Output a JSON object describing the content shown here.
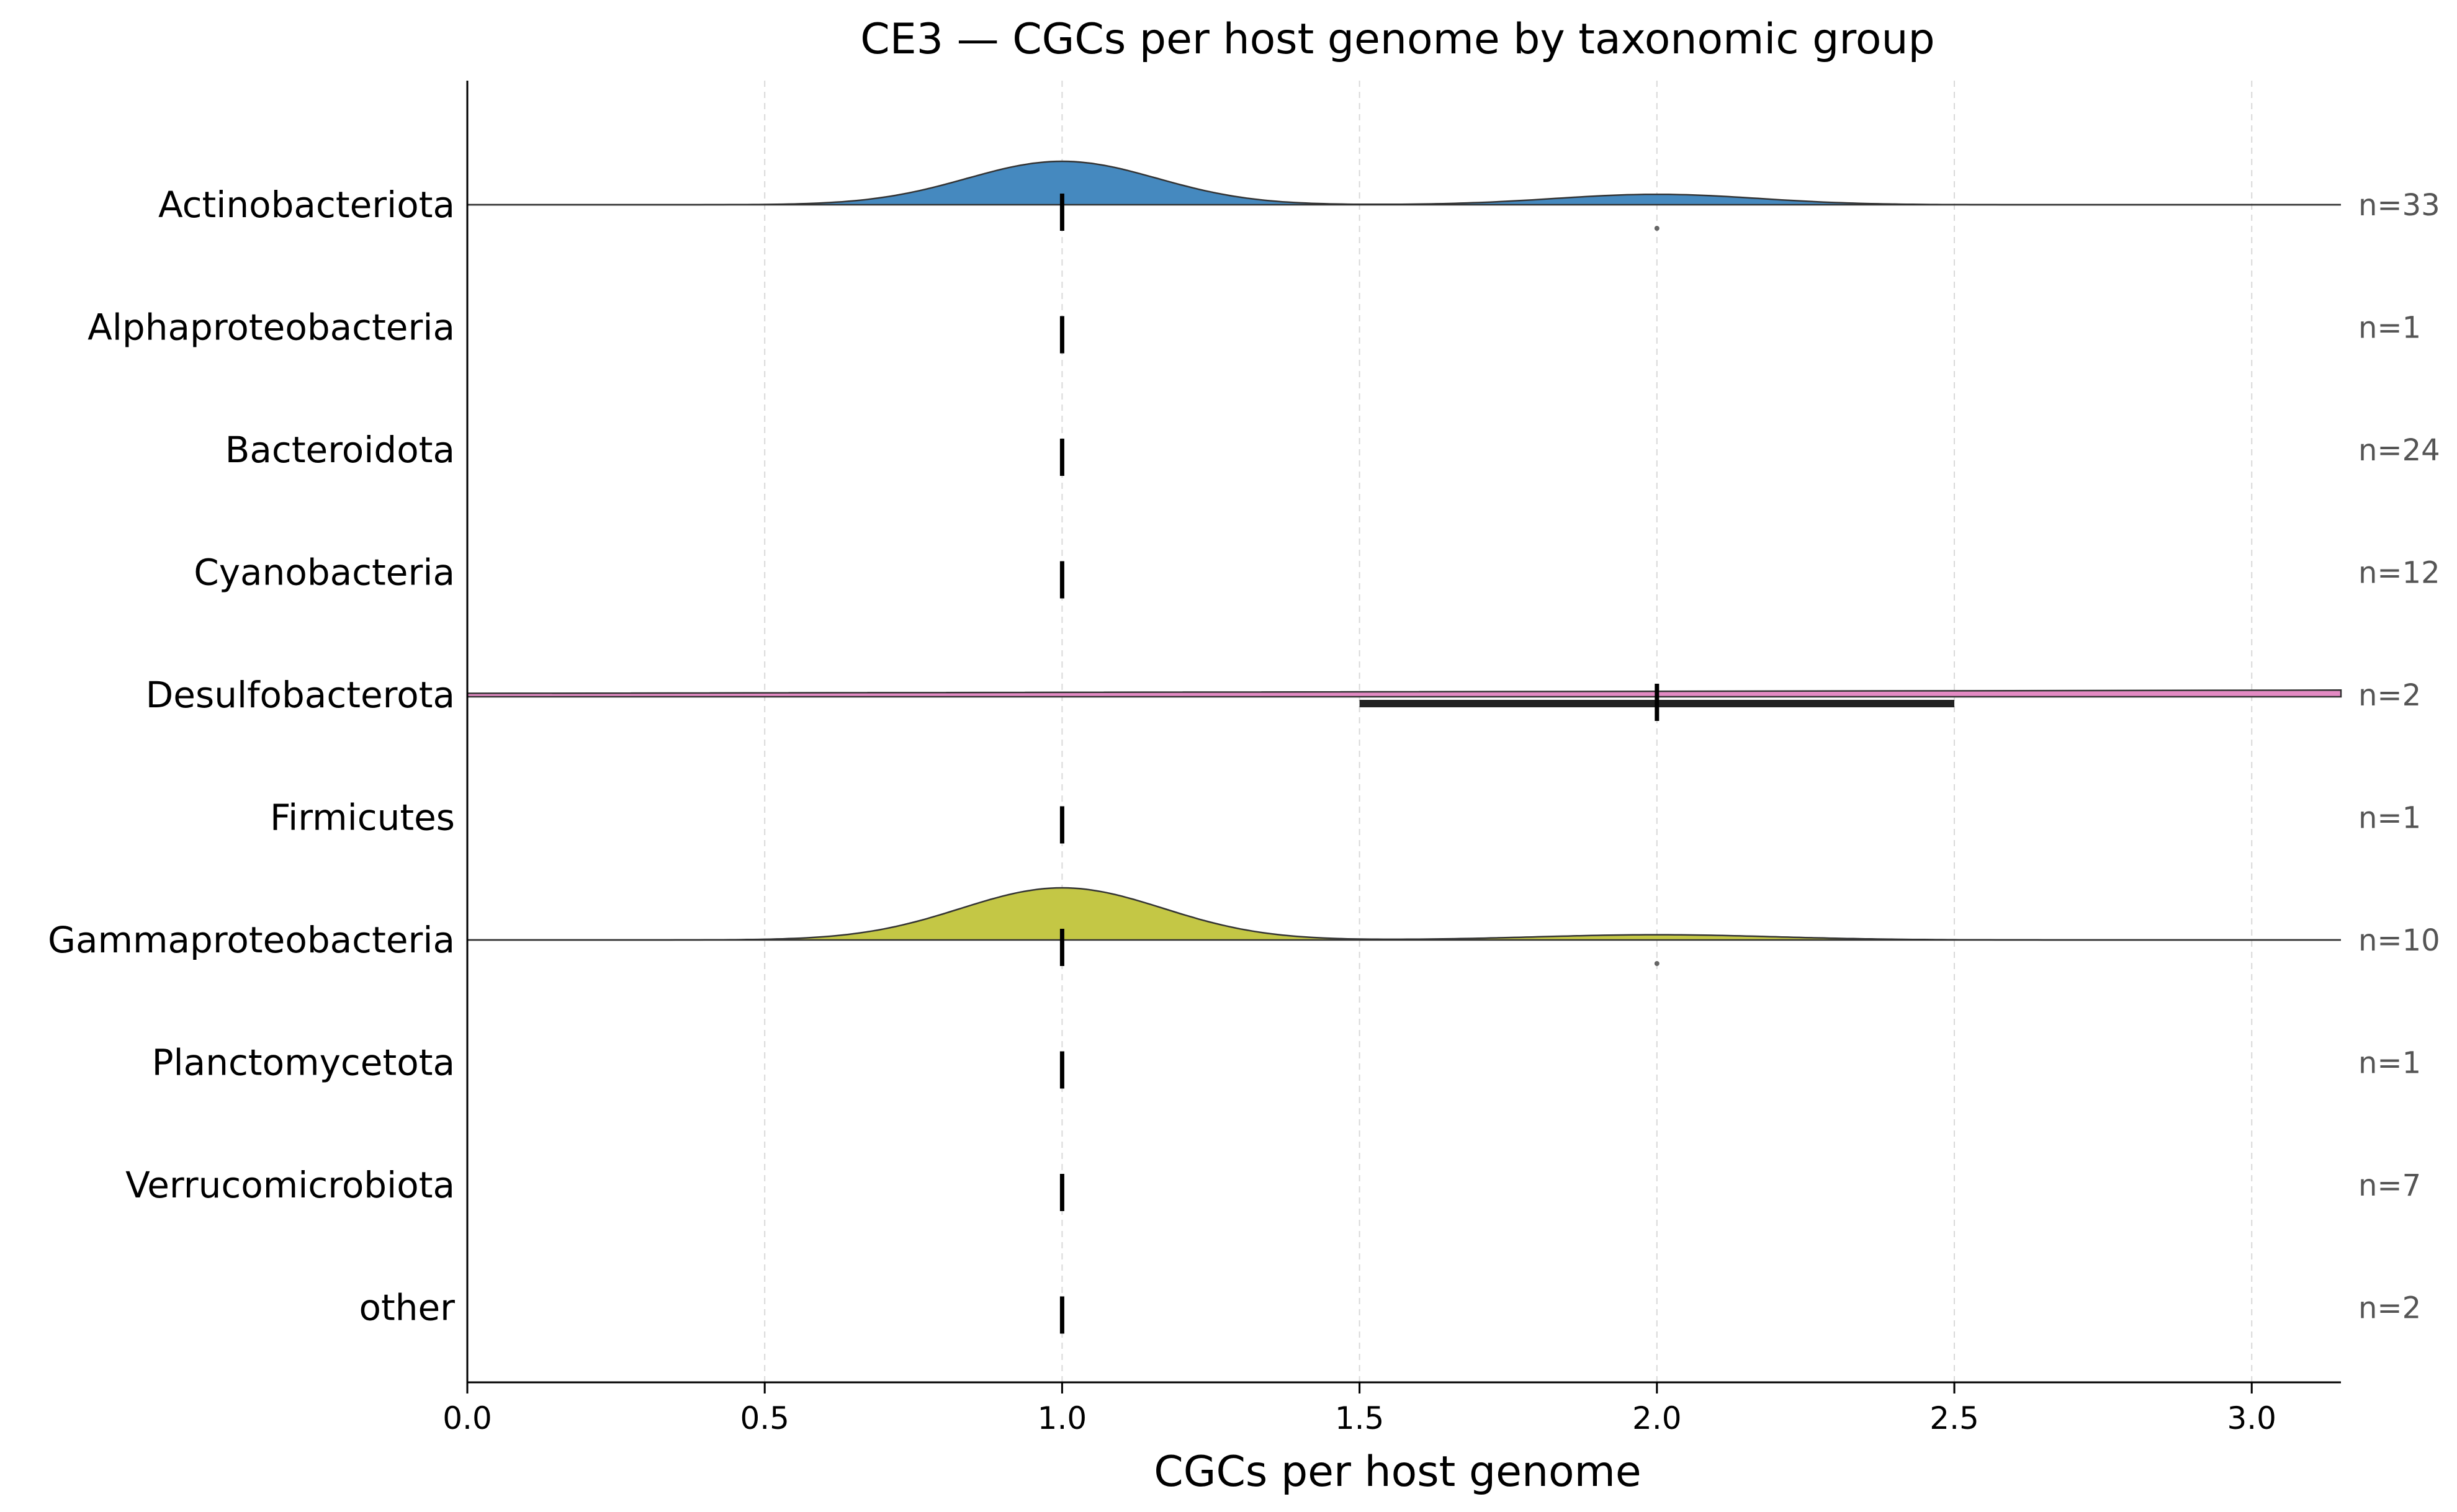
{
  "chart_data": {
    "type": "ridgeline",
    "title": "CE3 — CGCs per host genome by taxonomic group",
    "xlabel": "CGCs per host genome",
    "ylabel": "",
    "xlim": [
      0.0,
      3.15
    ],
    "x_ticks": [
      "0.0",
      "0.5",
      "1.0",
      "1.5",
      "2.0",
      "2.5",
      "3.0"
    ],
    "x_tick_values": [
      0.0,
      0.5,
      1.0,
      1.5,
      2.0,
      2.5,
      3.0
    ],
    "grid": "vertical dashed",
    "groups": [
      {
        "name": "Actinobacteriota",
        "n_label": "n=33",
        "median": 1.0,
        "color": "#4589bf",
        "density": {
          "peaks": [
            {
              "mu": 1.0,
              "sigma": 0.16,
              "height": 1.0
            },
            {
              "mu": 2.0,
              "sigma": 0.17,
              "height": 0.24
            }
          ]
        },
        "outliers": [
          2.0
        ]
      },
      {
        "name": "Alphaproteobacteria",
        "n_label": "n=1",
        "median": 1.0
      },
      {
        "name": "Bacteroidota",
        "n_label": "n=24",
        "median": 1.0
      },
      {
        "name": "Cyanobacteria",
        "n_label": "n=12",
        "median": 1.0
      },
      {
        "name": "Desulfobacterota",
        "n_label": "n=2",
        "median": 2.0,
        "color": "#e38ac3",
        "iqr": [
          1.5,
          2.5
        ],
        "density": {
          "flat": true,
          "left_height": 0.035,
          "right_height": 0.11
        }
      },
      {
        "name": "Firmicutes",
        "n_label": "n=1",
        "median": 1.0
      },
      {
        "name": "Gammaproteobacteria",
        "n_label": "n=10",
        "median": 1.0,
        "color": "#c4c745",
        "density": {
          "peaks": [
            {
              "mu": 1.0,
              "sigma": 0.17,
              "height": 1.2
            },
            {
              "mu": 2.0,
              "sigma": 0.2,
              "height": 0.12
            }
          ]
        },
        "outliers": [
          2.0
        ]
      },
      {
        "name": "Planctomycetota",
        "n_label": "n=1",
        "median": 1.0
      },
      {
        "name": "Verrucomicrobiota",
        "n_label": "n=7",
        "median": 1.0
      },
      {
        "name": "other",
        "n_label": "n=2",
        "median": 1.0
      }
    ]
  }
}
